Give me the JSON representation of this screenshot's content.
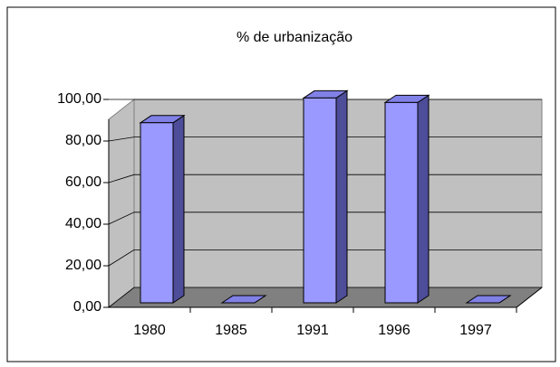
{
  "chart_data": {
    "type": "bar3d",
    "title": "% de urbanização",
    "categories": [
      "1980",
      "1985",
      "1991",
      "1996",
      "1997"
    ],
    "values": [
      80,
      0,
      91,
      89,
      0
    ],
    "color": "#9999ff",
    "ylim": [
      0,
      100
    ],
    "yticks": [
      {
        "value": 0,
        "label": "0,00"
      },
      {
        "value": 20,
        "label": "20,00"
      },
      {
        "value": 40,
        "label": "40,00"
      },
      {
        "value": 60,
        "label": "60,00"
      },
      {
        "value": 80,
        "label": "80,00"
      },
      {
        "value": 100,
        "label": "100,00"
      }
    ],
    "grid": true
  }
}
